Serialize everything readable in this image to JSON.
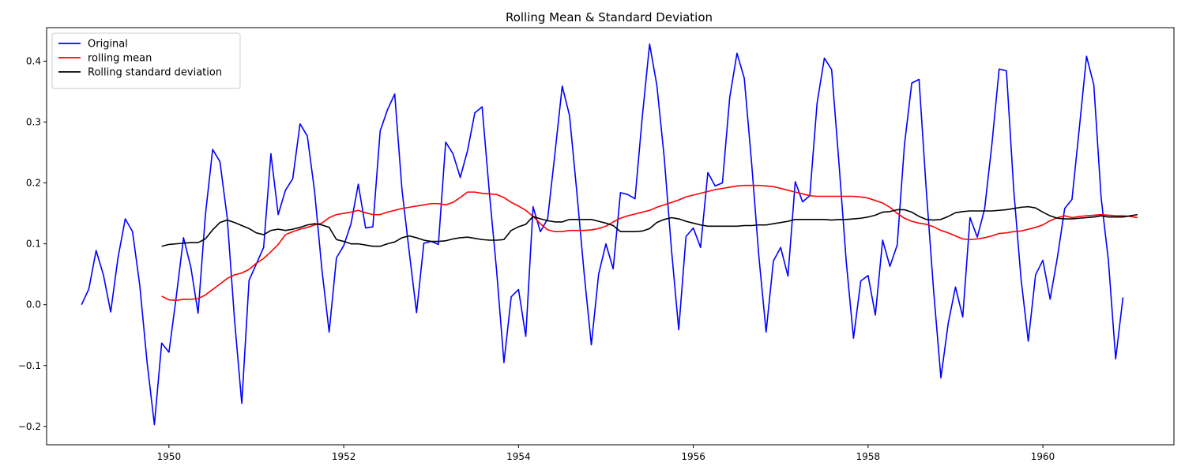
{
  "chart_data": {
    "type": "line",
    "title": "Rolling Mean & Standard Deviation",
    "xlabel": "",
    "ylabel": "",
    "xlim": [
      1948.6,
      1961.5
    ],
    "ylim": [
      -0.23,
      0.455
    ],
    "x_ticks": [
      1950,
      1952,
      1954,
      1956,
      1958,
      1960
    ],
    "x_tick_labels": [
      "1950",
      "1952",
      "1954",
      "1956",
      "1958",
      "1960"
    ],
    "y_ticks": [
      -0.2,
      -0.1,
      0.0,
      0.1,
      0.2,
      0.3,
      0.4
    ],
    "y_tick_labels": [
      "−0.2",
      "−0.1",
      "0.0",
      "0.1",
      "0.2",
      "0.3",
      "0.4"
    ],
    "grid": false,
    "legend_position": "top-left",
    "x_start": 1949.0,
    "x_step": 0.083333,
    "series": [
      {
        "name": "Original",
        "color": "#0000ff",
        "values": [
          0.0,
          0.026,
          0.089,
          0.049,
          -0.012,
          0.077,
          0.141,
          0.12,
          0.031,
          -0.095,
          -0.197,
          -0.063,
          -0.078,
          0.013,
          0.11,
          0.062,
          -0.014,
          0.147,
          0.255,
          0.235,
          0.143,
          -0.024,
          -0.162,
          0.04,
          0.067,
          0.094,
          0.248,
          0.148,
          0.188,
          0.207,
          0.297,
          0.277,
          0.186,
          0.058,
          -0.045,
          0.077,
          0.097,
          0.133,
          0.198,
          0.126,
          0.128,
          0.285,
          0.32,
          0.346,
          0.189,
          0.086,
          -0.013,
          0.101,
          0.104,
          0.099,
          0.267,
          0.248,
          0.209,
          0.253,
          0.315,
          0.325,
          0.184,
          0.055,
          -0.095,
          0.013,
          0.025,
          -0.052,
          0.161,
          0.12,
          0.141,
          0.248,
          0.359,
          0.311,
          0.186,
          0.053,
          -0.066,
          0.05,
          0.1,
          0.059,
          0.184,
          0.181,
          0.174,
          0.309,
          0.428,
          0.36,
          0.243,
          0.091,
          -0.041,
          0.112,
          0.126,
          0.094,
          0.217,
          0.195,
          0.2,
          0.34,
          0.413,
          0.372,
          0.234,
          0.08,
          -0.045,
          0.072,
          0.094,
          0.047,
          0.202,
          0.169,
          0.179,
          0.331,
          0.405,
          0.386,
          0.233,
          0.071,
          -0.055,
          0.039,
          0.048,
          -0.017,
          0.106,
          0.063,
          0.098,
          0.263,
          0.364,
          0.37,
          0.187,
          0.023,
          -0.12,
          -0.031,
          0.029,
          -0.02,
          0.143,
          0.111,
          0.157,
          0.263,
          0.387,
          0.384,
          0.189,
          0.043,
          -0.06,
          0.049,
          0.073,
          0.009,
          0.078,
          0.158,
          0.173,
          0.289,
          0.408,
          0.361,
          0.176,
          0.073,
          -0.089,
          0.012
        ]
      },
      {
        "name": "rolling mean",
        "color": "#ff0000",
        "start_index": 11,
        "values": [
          0.014,
          0.008,
          0.007,
          0.009,
          0.009,
          0.01,
          0.016,
          0.025,
          0.034,
          0.043,
          0.049,
          0.052,
          0.058,
          0.068,
          0.076,
          0.087,
          0.099,
          0.115,
          0.12,
          0.124,
          0.127,
          0.131,
          0.134,
          0.143,
          0.148,
          0.15,
          0.152,
          0.155,
          0.151,
          0.148,
          0.148,
          0.152,
          0.155,
          0.158,
          0.16,
          0.162,
          0.164,
          0.166,
          0.166,
          0.164,
          0.168,
          0.176,
          0.185,
          0.185,
          0.183,
          0.182,
          0.181,
          0.176,
          0.168,
          0.162,
          0.155,
          0.145,
          0.133,
          0.123,
          0.12,
          0.12,
          0.122,
          0.122,
          0.122,
          0.123,
          0.125,
          0.129,
          0.136,
          0.142,
          0.146,
          0.149,
          0.152,
          0.155,
          0.16,
          0.164,
          0.168,
          0.172,
          0.177,
          0.18,
          0.183,
          0.186,
          0.189,
          0.191,
          0.193,
          0.195,
          0.196,
          0.196,
          0.196,
          0.195,
          0.194,
          0.191,
          0.188,
          0.185,
          0.182,
          0.179,
          0.178,
          0.178,
          0.178,
          0.178,
          0.178,
          0.178,
          0.177,
          0.175,
          0.171,
          0.167,
          0.16,
          0.15,
          0.142,
          0.137,
          0.134,
          0.132,
          0.128,
          0.122,
          0.118,
          0.113,
          0.108,
          0.107,
          0.108,
          0.11,
          0.113,
          0.117,
          0.118,
          0.12,
          0.121,
          0.124,
          0.127,
          0.131,
          0.138,
          0.143,
          0.146,
          0.143,
          0.145,
          0.146,
          0.147,
          0.148,
          0.147,
          0.146,
          0.146,
          0.145,
          0.143
        ]
      },
      {
        "name": "Rolling standard deviation",
        "color": "#000000",
        "start_index": 11,
        "values": [
          0.096,
          0.099,
          0.1,
          0.101,
          0.102,
          0.102,
          0.108,
          0.123,
          0.135,
          0.139,
          0.135,
          0.13,
          0.125,
          0.118,
          0.115,
          0.122,
          0.124,
          0.122,
          0.124,
          0.127,
          0.131,
          0.133,
          0.131,
          0.127,
          0.107,
          0.104,
          0.1,
          0.1,
          0.098,
          0.096,
          0.096,
          0.1,
          0.103,
          0.11,
          0.113,
          0.11,
          0.106,
          0.104,
          0.104,
          0.105,
          0.108,
          0.11,
          0.111,
          0.109,
          0.107,
          0.106,
          0.106,
          0.107,
          0.122,
          0.128,
          0.132,
          0.145,
          0.141,
          0.138,
          0.136,
          0.136,
          0.14,
          0.14,
          0.14,
          0.14,
          0.137,
          0.134,
          0.13,
          0.12,
          0.12,
          0.12,
          0.121,
          0.125,
          0.135,
          0.14,
          0.143,
          0.141,
          0.137,
          0.134,
          0.131,
          0.129,
          0.129,
          0.129,
          0.129,
          0.129,
          0.13,
          0.13,
          0.131,
          0.131,
          0.133,
          0.135,
          0.137,
          0.14,
          0.14,
          0.14,
          0.14,
          0.14,
          0.139,
          0.14,
          0.14,
          0.141,
          0.142,
          0.144,
          0.147,
          0.152,
          0.153,
          0.156,
          0.156,
          0.152,
          0.145,
          0.14,
          0.139,
          0.14,
          0.145,
          0.151,
          0.153,
          0.154,
          0.154,
          0.154,
          0.154,
          0.155,
          0.156,
          0.158,
          0.16,
          0.161,
          0.159,
          0.152,
          0.146,
          0.142,
          0.141,
          0.141,
          0.142,
          0.143,
          0.144,
          0.146,
          0.144,
          0.144,
          0.144,
          0.146,
          0.148
        ]
      }
    ]
  }
}
